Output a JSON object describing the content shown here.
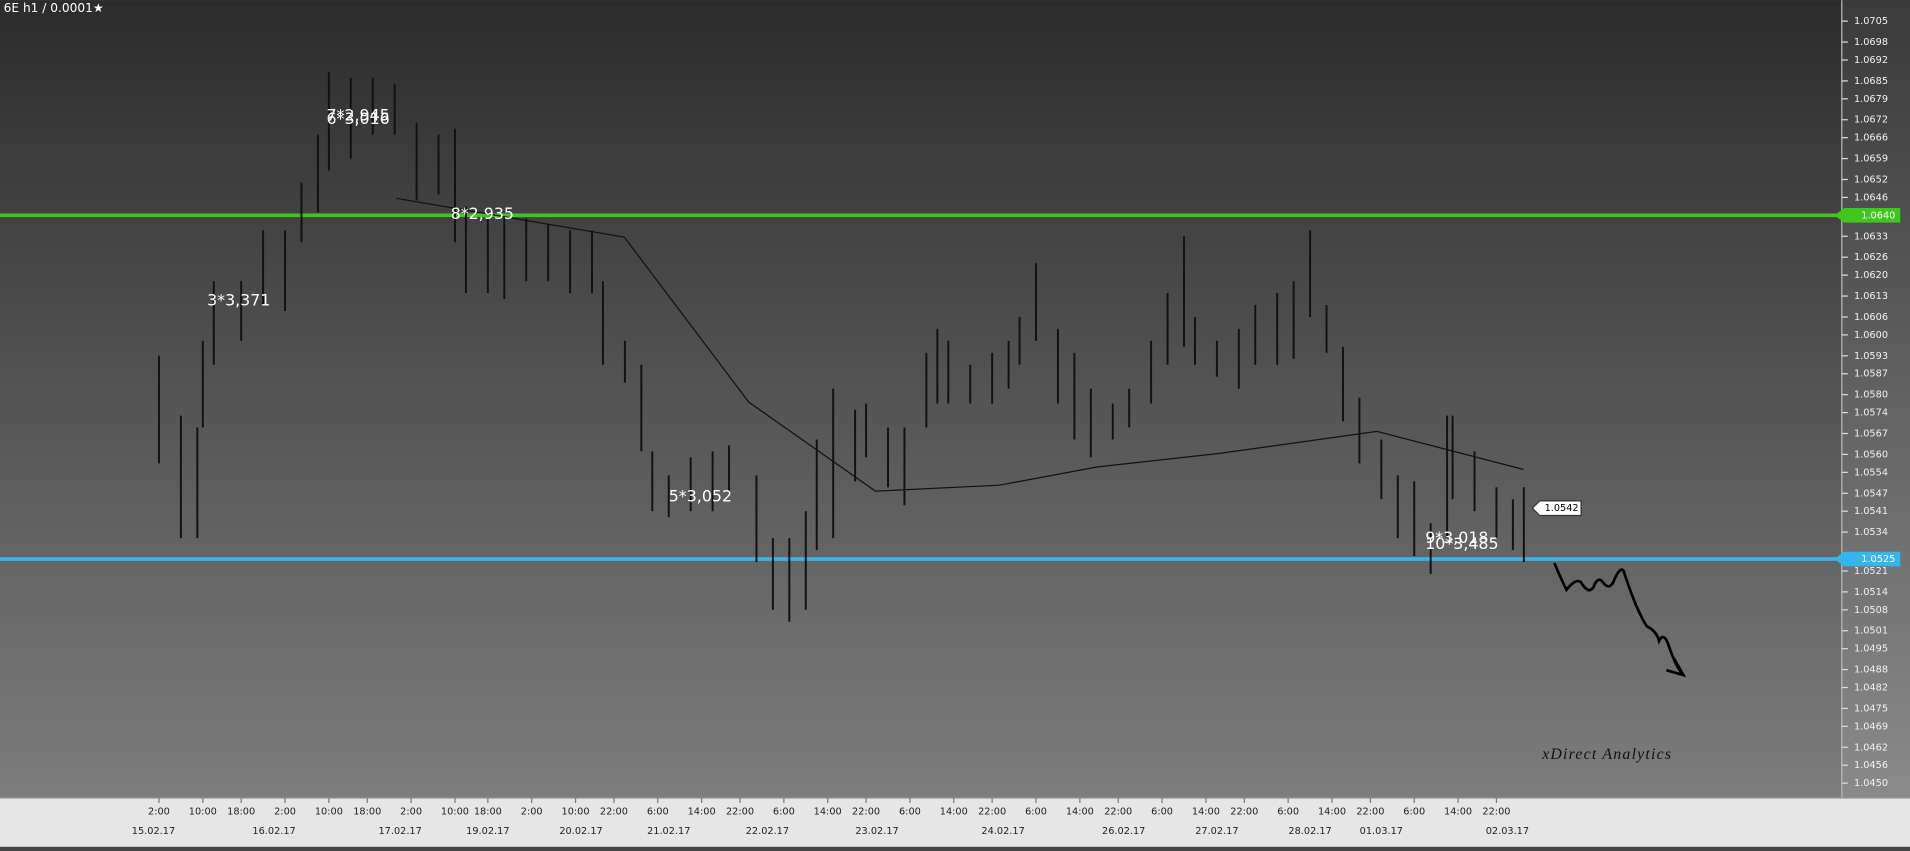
{
  "chart_data": {
    "type": "range",
    "title": "6E h1 / 0.0001★",
    "xlim": [
      -29,
      307
    ],
    "ylim": [
      1.0445,
      1.0712
    ],
    "xticks": [
      {
        "value": 0,
        "label": "2:00"
      },
      {
        "value": 8,
        "label": "10:00"
      },
      {
        "value": 15,
        "label": "18:00"
      },
      {
        "value": 23,
        "label": "2:00"
      },
      {
        "value": 31,
        "label": "10:00"
      },
      {
        "value": 38,
        "label": "18:00"
      },
      {
        "value": 46,
        "label": "2:00"
      },
      {
        "value": 54,
        "label": "10:00"
      },
      {
        "value": 60,
        "label": "18:00"
      },
      {
        "value": 68,
        "label": "2:00"
      },
      {
        "value": 76,
        "label": "10:00"
      },
      {
        "value": 83,
        "label": "22:00"
      },
      {
        "value": 91,
        "label": "6:00"
      },
      {
        "value": 99,
        "label": "14:00"
      },
      {
        "value": 106,
        "label": "22:00"
      },
      {
        "value": 114,
        "label": "6:00"
      },
      {
        "value": 122,
        "label": "14:00"
      },
      {
        "value": 129,
        "label": "22:00"
      },
      {
        "value": 137,
        "label": "6:00"
      },
      {
        "value": 145,
        "label": "14:00"
      },
      {
        "value": 152,
        "label": "22:00"
      },
      {
        "value": 160,
        "label": "6:00"
      },
      {
        "value": 168,
        "label": "14:00"
      },
      {
        "value": 175,
        "label": "22:00"
      },
      {
        "value": 183,
        "label": "6:00"
      },
      {
        "value": 191,
        "label": "14:00"
      },
      {
        "value": 198,
        "label": "22:00"
      },
      {
        "value": 206,
        "label": "6:00"
      },
      {
        "value": 214,
        "label": "14:00"
      },
      {
        "value": 221,
        "label": "22:00"
      },
      {
        "value": 229,
        "label": "6:00"
      },
      {
        "value": 237,
        "label": "14:00"
      },
      {
        "value": 244,
        "label": "22:00"
      }
    ],
    "xdates": [
      {
        "value": -1,
        "label": "15.02.17"
      },
      {
        "value": 21,
        "label": "16.02.17"
      },
      {
        "value": 44,
        "label": "17.02.17"
      },
      {
        "value": 60,
        "label": "19.02.17"
      },
      {
        "value": 77,
        "label": "20.02.17"
      },
      {
        "value": 93,
        "label": "21.02.17"
      },
      {
        "value": 111,
        "label": "22.02.17"
      },
      {
        "value": 131,
        "label": "23.02.17"
      },
      {
        "value": 154,
        "label": "24.02.17"
      },
      {
        "value": 176,
        "label": "26.02.17"
      },
      {
        "value": 193,
        "label": "27.02.17"
      },
      {
        "value": 210,
        "label": "28.02.17"
      },
      {
        "value": 223,
        "label": "01.03.17"
      },
      {
        "value": 246,
        "label": "02.03.17"
      }
    ],
    "yticks": [
      1.0705,
      1.0698,
      1.0692,
      1.0685,
      1.0679,
      1.0672,
      1.0666,
      1.0659,
      1.0652,
      1.0646,
      1.0633,
      1.0626,
      {
        "value": 1.062,
        "label": "1.0620"
      },
      1.0613,
      1.0606,
      {
        "value": 1.06,
        "label": "1.0600"
      },
      1.0593,
      1.0587,
      {
        "value": 1.058,
        "label": "1.0580"
      },
      1.0574,
      1.0567,
      {
        "value": 1.056,
        "label": "1.0560"
      },
      1.0554,
      1.0547,
      1.0541,
      1.0534,
      1.0521,
      1.0514,
      1.0508,
      1.0501,
      1.0495,
      1.0488,
      1.0482,
      1.0475,
      1.0469,
      1.0462,
      1.0456,
      {
        "value": 1.045,
        "label": "1.0450"
      }
    ],
    "bars": {
      "color": "#111111",
      "x": [
        0,
        4,
        7,
        8,
        10,
        15,
        19,
        23,
        26,
        29,
        31,
        35,
        39,
        43,
        47,
        51,
        54,
        56,
        60,
        63,
        67,
        71,
        75,
        79,
        81,
        85,
        88,
        90,
        93,
        97,
        101,
        104,
        109,
        112,
        115,
        118,
        120,
        123,
        127,
        129,
        133,
        136,
        140,
        142,
        144,
        148,
        152,
        155,
        157,
        160,
        164,
        167,
        170,
        174,
        177,
        181,
        184,
        187,
        189,
        193,
        197,
        200,
        204,
        207,
        210,
        213,
        216,
        219,
        223,
        226,
        229,
        232,
        235,
        236,
        240,
        244,
        247,
        249
      ],
      "high": [
        1.0593,
        1.0573,
        1.0569,
        1.0598,
        1.0618,
        1.0618,
        1.0635,
        1.0635,
        1.0651,
        1.0667,
        1.0688,
        1.0686,
        1.0686,
        1.0684,
        1.0671,
        1.0667,
        1.0669,
        1.0643,
        1.0639,
        1.0639,
        1.0639,
        1.0637,
        1.0635,
        1.0635,
        1.0618,
        1.0598,
        1.059,
        1.0561,
        1.0553,
        1.0559,
        1.0561,
        1.0563,
        1.0553,
        1.0532,
        1.0532,
        1.0541,
        1.0565,
        1.0582,
        1.0575,
        1.0577,
        1.0569,
        1.0569,
        1.0594,
        1.0602,
        1.0598,
        1.059,
        1.0594,
        1.0598,
        1.0606,
        1.0624,
        1.0602,
        1.0594,
        1.0582,
        1.0577,
        1.0582,
        1.0598,
        1.0614,
        1.0633,
        1.0606,
        1.0598,
        1.0602,
        1.061,
        1.0614,
        1.0618,
        1.0635,
        1.061,
        1.0596,
        1.0579,
        1.0565,
        1.0553,
        1.0551,
        1.0537,
        1.0573,
        1.0573,
        1.0561,
        1.0549,
        1.0545,
        1.0549
      ],
      "low": [
        1.0557,
        1.0532,
        1.0532,
        1.0569,
        1.059,
        1.0598,
        1.061,
        1.0608,
        1.0631,
        1.0641,
        1.0655,
        1.0659,
        1.0667,
        1.0667,
        1.0645,
        1.0647,
        1.0631,
        1.0614,
        1.0614,
        1.0612,
        1.0618,
        1.0618,
        1.0614,
        1.0614,
        1.059,
        1.0584,
        1.0561,
        1.0541,
        1.0539,
        1.0541,
        1.0541,
        1.0547,
        1.0524,
        1.0508,
        1.0504,
        1.0508,
        1.0528,
        1.0532,
        1.0551,
        1.0559,
        1.0549,
        1.0543,
        1.0569,
        1.0577,
        1.0577,
        1.0577,
        1.0577,
        1.0582,
        1.059,
        1.0598,
        1.0577,
        1.0565,
        1.0559,
        1.0565,
        1.0569,
        1.0577,
        1.059,
        1.0596,
        1.059,
        1.0586,
        1.0582,
        1.059,
        1.059,
        1.0592,
        1.0606,
        1.0594,
        1.0571,
        1.0557,
        1.0545,
        1.0532,
        1.0526,
        1.052,
        1.0532,
        1.0545,
        1.0541,
        1.0532,
        1.0528,
        1.0524
      ]
    },
    "average": {
      "color": "#111111",
      "x": [
        43.3,
        84.9,
        107.6,
        130.7,
        153.3,
        171.1,
        193.3,
        222.2,
        248.9
      ],
      "y": [
        1.06457,
        1.06327,
        1.05775,
        1.05477,
        1.05497,
        1.05558,
        1.05603,
        1.05677,
        1.0555
      ]
    },
    "levels": [
      {
        "value": 1.064,
        "label": "1.0640",
        "color": "#3ec81e"
      },
      {
        "value": 1.0525,
        "label": "1.0525",
        "color": "#35b6ea"
      }
    ],
    "last_price": 1.0542,
    "annotations": [
      "3*3,371",
      "7*2,945",
      "6*3,016",
      "8*2,935",
      "5*3,052",
      "9*3,018",
      "10*3,485"
    ],
    "watermark": "xDirect Analytics"
  }
}
